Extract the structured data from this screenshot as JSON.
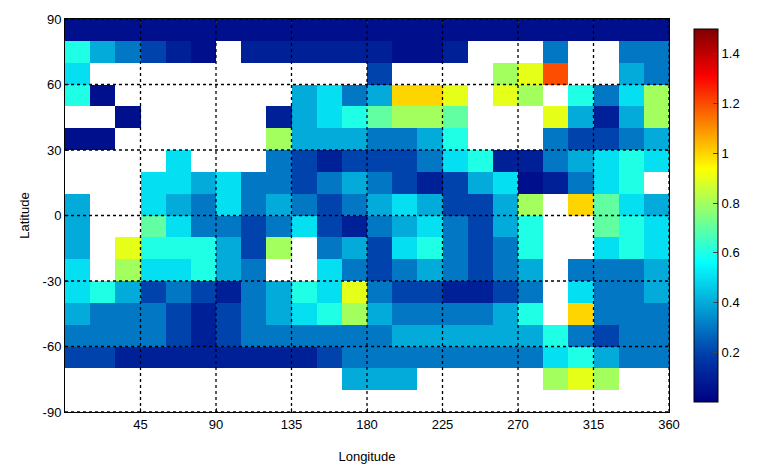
{
  "chart_data": {
    "type": "heatmap",
    "x_label": "Longitude",
    "y_label": "Latitude",
    "x": [
      7.5,
      22.5,
      37.5,
      52.5,
      67.5,
      82.5,
      97.5,
      112.5,
      127.5,
      142.5,
      157.5,
      172.5,
      187.5,
      202.5,
      217.5,
      232.5,
      247.5,
      262.5,
      277.5,
      292.5,
      307.5,
      322.5,
      337.5,
      352.5
    ],
    "y": [
      -85,
      -75,
      -65,
      -55,
      -45,
      -35,
      -25,
      -15,
      -5,
      5,
      15,
      25,
      35,
      45,
      55,
      65,
      75,
      85
    ],
    "z": [
      [
        null,
        null,
        null,
        null,
        null,
        null,
        null,
        null,
        null,
        null,
        null,
        null,
        null,
        null,
        null,
        null,
        null,
        null,
        null,
        null,
        null,
        null,
        null,
        null
      ],
      [
        null,
        null,
        null,
        null,
        null,
        null,
        null,
        null,
        null,
        null,
        null,
        0.4,
        0.4,
        0.4,
        null,
        null,
        null,
        null,
        null,
        0.8,
        0.9,
        0.8,
        null,
        null
      ],
      [
        0.2,
        0.2,
        0.1,
        0.1,
        0.1,
        0.1,
        0.1,
        0.1,
        0.1,
        0.1,
        0.2,
        0.3,
        0.3,
        0.3,
        0.3,
        0.3,
        0.3,
        0.3,
        0.3,
        0.5,
        0.6,
        0.4,
        0.3,
        0.3
      ],
      [
        0.3,
        0.3,
        0.3,
        0.3,
        0.2,
        0.1,
        0.2,
        0.3,
        0.3,
        0.3,
        0.3,
        0.3,
        0.3,
        0.4,
        0.4,
        0.4,
        0.4,
        0.4,
        0.4,
        0.6,
        0.3,
        0.2,
        0.3,
        0.3
      ],
      [
        0.4,
        0.3,
        0.3,
        0.3,
        0.2,
        0.1,
        0.2,
        0.3,
        0.4,
        0.5,
        0.6,
        0.8,
        0.4,
        0.3,
        0.3,
        0.3,
        0.3,
        0.4,
        0.6,
        null,
        1.0,
        0.3,
        0.3,
        0.3
      ],
      [
        0.5,
        0.6,
        0.4,
        0.2,
        0.3,
        0.2,
        0.1,
        0.3,
        0.4,
        0.6,
        0.5,
        0.9,
        0.3,
        0.2,
        0.2,
        0.1,
        0.1,
        0.2,
        0.3,
        null,
        0.5,
        0.3,
        0.3,
        0.4
      ],
      [
        0.5,
        null,
        0.8,
        0.5,
        0.5,
        0.6,
        0.4,
        0.3,
        null,
        null,
        0.5,
        0.3,
        0.2,
        0.3,
        0.4,
        0.3,
        0.2,
        0.3,
        0.4,
        null,
        0.3,
        0.3,
        0.3,
        0.4
      ],
      [
        0.4,
        null,
        0.9,
        0.6,
        0.6,
        0.6,
        0.4,
        0.2,
        0.8,
        null,
        0.3,
        0.4,
        0.2,
        0.5,
        0.6,
        0.3,
        0.2,
        0.3,
        0.6,
        null,
        null,
        0.5,
        0.6,
        0.5
      ],
      [
        0.4,
        null,
        null,
        0.7,
        0.5,
        0.3,
        0.3,
        0.2,
        0.3,
        0.5,
        0.2,
        0.1,
        0.3,
        0.4,
        0.5,
        0.3,
        0.2,
        0.4,
        0.6,
        null,
        null,
        0.7,
        0.6,
        0.5
      ],
      [
        0.4,
        null,
        null,
        0.5,
        0.4,
        0.3,
        0.5,
        0.3,
        0.4,
        0.3,
        0.2,
        0.3,
        0.4,
        0.5,
        0.4,
        0.2,
        0.2,
        0.4,
        0.8,
        null,
        1.0,
        0.7,
        0.5,
        0.4
      ],
      [
        null,
        null,
        null,
        0.5,
        0.5,
        0.4,
        0.5,
        0.3,
        0.3,
        0.2,
        0.3,
        0.4,
        0.3,
        0.2,
        0.1,
        0.2,
        0.4,
        0.5,
        0.05,
        0.1,
        0.3,
        0.5,
        0.6,
        null
      ],
      [
        null,
        null,
        null,
        null,
        0.5,
        null,
        null,
        null,
        0.3,
        0.2,
        0.1,
        0.2,
        0.2,
        0.2,
        0.3,
        0.5,
        0.6,
        0.1,
        0.1,
        0.3,
        0.4,
        0.5,
        0.6,
        0.5
      ],
      [
        0.05,
        0.05,
        null,
        null,
        null,
        null,
        null,
        null,
        0.8,
        0.4,
        0.4,
        0.4,
        0.3,
        0.3,
        0.4,
        0.6,
        null,
        null,
        null,
        0.3,
        0.2,
        0.2,
        0.3,
        0.4
      ],
      [
        null,
        null,
        0.05,
        null,
        null,
        null,
        null,
        null,
        0.1,
        0.4,
        0.5,
        0.6,
        0.7,
        0.8,
        0.8,
        0.7,
        null,
        null,
        null,
        0.9,
        0.4,
        0.1,
        0.4,
        0.8
      ],
      [
        0.6,
        0.05,
        null,
        null,
        null,
        null,
        null,
        null,
        null,
        0.4,
        0.5,
        0.3,
        0.4,
        1.0,
        1.0,
        0.9,
        null,
        0.9,
        0.8,
        null,
        0.6,
        0.3,
        0.5,
        0.8
      ],
      [
        0.5,
        null,
        null,
        null,
        null,
        null,
        null,
        null,
        null,
        null,
        null,
        null,
        0.2,
        null,
        null,
        null,
        null,
        0.8,
        0.9,
        1.2,
        null,
        null,
        0.4,
        0.3
      ],
      [
        0.6,
        0.4,
        0.3,
        0.2,
        0.1,
        0.05,
        null,
        0.1,
        0.1,
        0.1,
        0.1,
        0.1,
        0.1,
        0.05,
        0.05,
        0.1,
        null,
        null,
        null,
        0.3,
        null,
        null,
        0.3,
        0.3
      ],
      [
        0.05,
        0.05,
        0.05,
        0.05,
        0.05,
        0.05,
        0.05,
        0.05,
        0.05,
        0.05,
        0.05,
        0.05,
        0.05,
        0.05,
        0.05,
        0.05,
        0.05,
        0.05,
        0.05,
        0.05,
        0.05,
        0.05,
        0.05,
        0.05
      ]
    ],
    "xlim": [
      0,
      360
    ],
    "ylim": [
      -90,
      90
    ],
    "xticks": [
      45,
      90,
      135,
      180,
      225,
      270,
      315,
      360
    ],
    "yticks": [
      -90,
      -60,
      -30,
      0,
      30,
      60,
      90
    ],
    "grid": true,
    "colorbar": {
      "range": [
        0,
        1.5
      ],
      "ticks": [
        0.2,
        0.4,
        0.6,
        0.8,
        1,
        1.2,
        1.4
      ]
    }
  }
}
